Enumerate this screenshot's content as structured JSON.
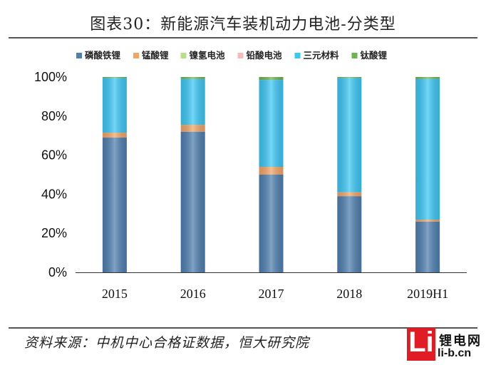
{
  "title": "图表30：新能源汽车装机动力电池-分类型",
  "source": "资料来源：中机中心合格证数据，恒大研究院",
  "watermark": {
    "letter": "Li",
    "name": "锂电网",
    "url": "li-b.cn"
  },
  "chart_data": {
    "type": "bar",
    "stacked": true,
    "categories": [
      "2015",
      "2016",
      "2017",
      "2018",
      "2019H1"
    ],
    "ylim": [
      0,
      100
    ],
    "yticks": [
      "0%",
      "20%",
      "40%",
      "60%",
      "80%",
      "100%"
    ],
    "legend_position": "top",
    "series": [
      {
        "name": "磷酸铁锂",
        "color": "#4f7fb0",
        "values": [
          69,
          72,
          50,
          39,
          26
        ]
      },
      {
        "name": "锰酸锂",
        "color": "#f3a566",
        "values": [
          2.5,
          3.5,
          4,
          2,
          1
        ]
      },
      {
        "name": "镍氢电池",
        "color": "#b9dd8a",
        "values": [
          0,
          0,
          0,
          0,
          0
        ]
      },
      {
        "name": "铅酸电池",
        "color": "#f2bcbc",
        "values": [
          0,
          0,
          0,
          0,
          0
        ]
      },
      {
        "name": "三元材料",
        "color": "#3cc7f5",
        "values": [
          28,
          23.5,
          44.5,
          58.5,
          72
        ]
      },
      {
        "name": "钛酸锂",
        "color": "#6fb351",
        "values": [
          0.5,
          1,
          1.5,
          0.5,
          1
        ]
      }
    ]
  }
}
